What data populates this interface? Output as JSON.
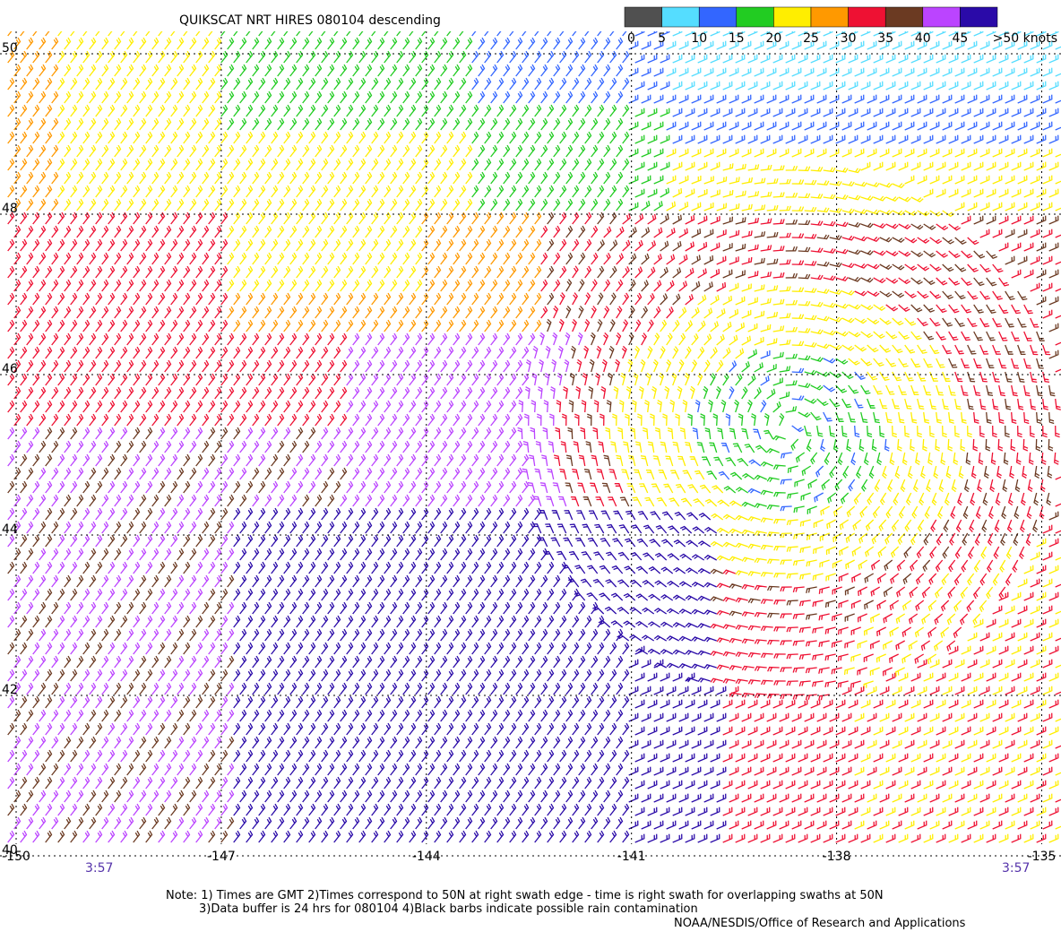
{
  "header": {
    "title": "QUIKSCAT NRT HIRES 080104 descending"
  },
  "colorbar": {
    "labels": [
      "0",
      "5",
      "10",
      "15",
      "20",
      "25",
      "30",
      "35",
      "40",
      "45",
      ">50 knots"
    ],
    "colors": [
      "#505050",
      "#55ddff",
      "#3366ff",
      "#22cc22",
      "#ffee00",
      "#ff9900",
      "#ee1133",
      "#6b3a22",
      "#bb44ff",
      "#2a0aa8"
    ]
  },
  "map": {
    "lat_labels": [
      50,
      48,
      46,
      44,
      42,
      40
    ],
    "lon_labels": [
      -150,
      -147,
      -144,
      -141,
      -138,
      -135
    ],
    "time_left": "3:57",
    "time_right": "3:57"
  },
  "notes": [
    "Note: 1) Times are GMT 2)Times correspond to 50N at right swath edge - time is right swath for overlapping swaths at 50N",
    "3)Data buffer is 24 hrs for 080104 4)Black barbs indicate possible rain contamination",
    "NOAA/NESDIS/Office of Research and Applications"
  ]
}
